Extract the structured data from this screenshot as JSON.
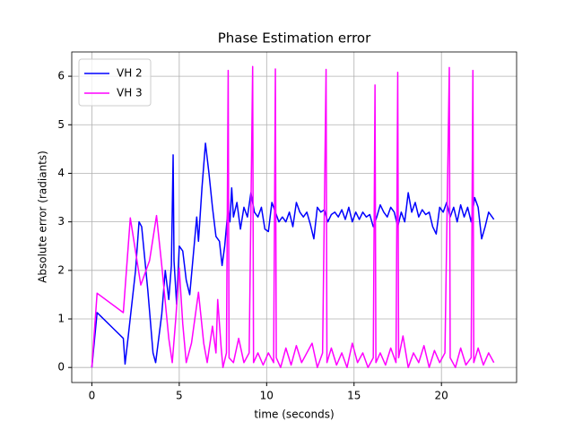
{
  "chart_data": {
    "type": "line",
    "title": "Phase Estimation error",
    "xlabel": "time  (seconds)",
    "ylabel": "Absolute error (radiants)",
    "xlim": [
      -1.15,
      24.3
    ],
    "ylim": [
      -0.31,
      6.5
    ],
    "xticks": [
      0,
      5,
      10,
      15,
      20
    ],
    "yticks": [
      0,
      1,
      2,
      3,
      4,
      5,
      6
    ],
    "grid": true,
    "legend": "upper-left",
    "series": [
      {
        "name": "VH 2",
        "color": "#0000ff",
        "x": [
          0,
          0.3,
          1.8,
          1.9,
          2.1,
          2.5,
          2.7,
          2.85,
          3.2,
          3.5,
          3.65,
          4.0,
          4.2,
          4.4,
          4.55,
          4.65,
          4.7,
          4.85,
          5.0,
          5.2,
          5.4,
          5.6,
          5.8,
          6.0,
          6.1,
          6.3,
          6.5,
          6.7,
          6.9,
          7.1,
          7.3,
          7.45,
          7.6,
          7.8,
          7.9,
          8.0,
          8.1,
          8.3,
          8.5,
          8.7,
          8.9,
          9.1,
          9.3,
          9.5,
          9.7,
          9.9,
          10.1,
          10.3,
          10.5,
          10.7,
          10.9,
          11.1,
          11.3,
          11.5,
          11.7,
          11.9,
          12.1,
          12.3,
          12.5,
          12.7,
          12.9,
          13.1,
          13.3,
          13.5,
          13.7,
          13.9,
          14.1,
          14.3,
          14.5,
          14.7,
          14.9,
          15.1,
          15.3,
          15.5,
          15.7,
          15.9,
          16.1,
          16.3,
          16.5,
          16.7,
          16.9,
          17.1,
          17.3,
          17.5,
          17.7,
          17.9,
          18.1,
          18.3,
          18.5,
          18.7,
          18.9,
          19.1,
          19.3,
          19.5,
          19.7,
          19.9,
          20.1,
          20.3,
          20.5,
          20.7,
          20.9,
          21.1,
          21.3,
          21.5,
          21.7,
          21.9,
          22.1,
          22.3,
          22.5,
          22.7,
          22.9,
          23.0
        ],
        "values": [
          0,
          1.13,
          0.6,
          0.07,
          0.7,
          2.0,
          3.0,
          2.9,
          1.6,
          0.3,
          0.1,
          1.1,
          2.0,
          1.4,
          2.1,
          4.38,
          2.2,
          1.3,
          2.5,
          2.4,
          1.8,
          1.5,
          2.3,
          3.1,
          2.6,
          3.7,
          4.62,
          4.0,
          3.3,
          2.7,
          2.6,
          2.1,
          2.5,
          3.3,
          3.0,
          3.7,
          3.1,
          3.4,
          2.85,
          3.3,
          3.1,
          3.6,
          3.2,
          3.1,
          3.3,
          2.85,
          2.8,
          3.4,
          3.2,
          3.0,
          3.1,
          3.0,
          3.2,
          2.9,
          3.4,
          3.2,
          3.1,
          3.2,
          2.95,
          2.65,
          3.3,
          3.2,
          3.25,
          3.0,
          3.15,
          3.2,
          3.1,
          3.25,
          3.05,
          3.3,
          3.0,
          3.2,
          3.05,
          3.2,
          3.1,
          3.15,
          2.9,
          3.1,
          3.35,
          3.2,
          3.1,
          3.3,
          3.2,
          2.9,
          3.2,
          3.0,
          3.6,
          3.2,
          3.4,
          3.1,
          3.25,
          3.15,
          3.2,
          2.9,
          2.75,
          3.3,
          3.2,
          3.4,
          3.1,
          3.3,
          3.0,
          3.35,
          3.1,
          3.3,
          3.0,
          3.5,
          3.3,
          2.65,
          2.9,
          3.2,
          3.1,
          3.05
        ]
      },
      {
        "name": "VH 3",
        "color": "#ff00ff",
        "x": [
          0,
          0.3,
          1.8,
          2.2,
          2.8,
          3.3,
          3.7,
          4.0,
          4.4,
          4.6,
          4.8,
          5.0,
          5.2,
          5.4,
          5.7,
          6.1,
          6.4,
          6.6,
          6.9,
          7.1,
          7.2,
          7.4,
          7.5,
          7.7,
          7.8,
          7.85,
          8.1,
          8.4,
          8.7,
          9.0,
          9.2,
          9.25,
          9.5,
          9.8,
          10.1,
          10.4,
          10.5,
          10.55,
          10.8,
          11.1,
          11.4,
          11.7,
          12.0,
          12.3,
          12.6,
          12.9,
          13.2,
          13.4,
          13.45,
          13.7,
          14.0,
          14.3,
          14.6,
          14.9,
          15.2,
          15.5,
          15.8,
          16.1,
          16.2,
          16.25,
          16.5,
          16.8,
          17.1,
          17.4,
          17.5,
          17.55,
          17.8,
          18.1,
          18.4,
          18.7,
          19.0,
          19.3,
          19.6,
          19.9,
          20.2,
          20.45,
          20.5,
          20.8,
          21.1,
          21.4,
          21.7,
          21.8,
          21.85,
          22.1,
          22.4,
          22.7,
          23.0
        ],
        "values": [
          0,
          1.53,
          1.13,
          3.08,
          1.7,
          2.2,
          3.13,
          2.1,
          0.6,
          0.1,
          1.0,
          2.05,
          0.9,
          0.1,
          0.5,
          1.55,
          0.5,
          0.1,
          0.85,
          0.3,
          1.4,
          0.4,
          0.0,
          0.3,
          6.12,
          0.2,
          0.1,
          0.6,
          0.1,
          0.3,
          6.2,
          0.1,
          0.3,
          0.05,
          0.3,
          0.1,
          6.15,
          0.2,
          0.0,
          0.4,
          0.05,
          0.45,
          0.1,
          0.3,
          0.5,
          0.0,
          0.3,
          6.14,
          0.1,
          0.4,
          0.05,
          0.3,
          0.0,
          0.5,
          0.1,
          0.3,
          0.0,
          0.2,
          5.82,
          0.1,
          0.3,
          0.05,
          0.4,
          0.1,
          6.08,
          0.2,
          0.65,
          0.0,
          0.3,
          0.1,
          0.45,
          0.0,
          0.35,
          0.1,
          0.3,
          6.18,
          0.2,
          0.0,
          0.4,
          0.05,
          0.2,
          6.12,
          0.1,
          0.4,
          0.05,
          0.3,
          0.1
        ]
      }
    ]
  }
}
